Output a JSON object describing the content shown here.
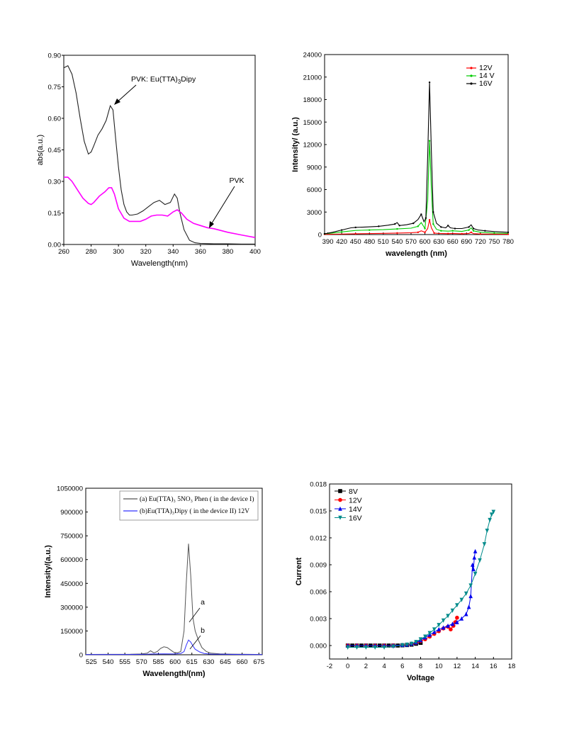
{
  "chart_data": [
    {
      "type": "line",
      "xlabel": "Wavelength(nm)",
      "ylabel": "abs(a.u.)",
      "xlim": [
        260,
        400
      ],
      "ylim": [
        0,
        0.9
      ],
      "xticks": [
        "260",
        "280",
        "300",
        "320",
        "340",
        "360",
        "380",
        "400"
      ],
      "yticks": [
        "0.00",
        "0.15",
        "0.30",
        "0.45",
        "0.60",
        "0.75",
        "0.90"
      ],
      "annotations": [
        {
          "text": "PVK: Eu(TTA)",
          "sub": "3",
          "tail": "Dipy"
        },
        {
          "text": "PVK"
        }
      ],
      "series": [
        {
          "color": "#222222",
          "x": [
            260,
            263,
            266,
            269,
            272,
            275,
            278,
            280,
            282,
            285,
            288,
            291,
            294,
            296,
            298,
            300,
            302,
            304,
            306,
            308,
            310,
            314,
            318,
            322,
            326,
            330,
            334,
            338,
            341,
            343,
            345,
            348,
            352,
            356,
            360,
            365,
            370,
            380,
            390,
            400
          ],
          "y": [
            0.84,
            0.85,
            0.81,
            0.72,
            0.6,
            0.49,
            0.43,
            0.44,
            0.47,
            0.52,
            0.55,
            0.59,
            0.66,
            0.64,
            0.5,
            0.37,
            0.26,
            0.19,
            0.155,
            0.14,
            0.14,
            0.145,
            0.16,
            0.18,
            0.2,
            0.21,
            0.19,
            0.2,
            0.24,
            0.22,
            0.15,
            0.07,
            0.02,
            0.008,
            0.005,
            0.004,
            0.003,
            0.003,
            0.002,
            0.002
          ]
        },
        {
          "color": "#ff00ff",
          "x": [
            260,
            263,
            266,
            270,
            274,
            278,
            280,
            282,
            286,
            290,
            293,
            295,
            297,
            300,
            304,
            308,
            312,
            316,
            320,
            324,
            328,
            332,
            336,
            340,
            343,
            346,
            350,
            355,
            360,
            365,
            370,
            380,
            390,
            400
          ],
          "y": [
            0.32,
            0.32,
            0.3,
            0.26,
            0.22,
            0.195,
            0.19,
            0.2,
            0.23,
            0.25,
            0.27,
            0.27,
            0.24,
            0.17,
            0.125,
            0.11,
            0.11,
            0.11,
            0.12,
            0.135,
            0.14,
            0.14,
            0.135,
            0.155,
            0.165,
            0.15,
            0.12,
            0.1,
            0.09,
            0.08,
            0.075,
            0.058,
            0.045,
            0.033
          ]
        }
      ]
    },
    {
      "type": "line",
      "xlabel": "wavelength (nm)",
      "ylabel": "Intensity/ (a.u.)",
      "xlim": [
        383,
        780
      ],
      "ylim": [
        0,
        24000
      ],
      "xticks": [
        "390",
        "420",
        "450",
        "480",
        "510",
        "540",
        "570",
        "600",
        "630",
        "660",
        "690",
        "720",
        "750",
        "780"
      ],
      "yticks": [
        "0",
        "3000",
        "6000",
        "9000",
        "12000",
        "15000",
        "18000",
        "21000",
        "24000"
      ],
      "legend_position": "top-right",
      "series": [
        {
          "name": "12V",
          "color": "#ff0000",
          "x": [
            383,
            400,
            450,
            500,
            540,
            570,
            585,
            592,
            600,
            606,
            610,
            614,
            620,
            630,
            650,
            660,
            680,
            695,
            700,
            705,
            720,
            750,
            780
          ],
          "y": [
            30,
            50,
            100,
            150,
            200,
            250,
            300,
            500,
            300,
            800,
            1950,
            900,
            200,
            150,
            120,
            150,
            100,
            150,
            300,
            120,
            80,
            60,
            40
          ]
        },
        {
          "name": "14 V",
          "color": "#00cc00",
          "x": [
            383,
            400,
            420,
            450,
            480,
            510,
            540,
            570,
            585,
            592,
            600,
            606,
            610,
            614,
            618,
            625,
            635,
            650,
            660,
            680,
            695,
            700,
            705,
            720,
            750,
            780
          ],
          "y": [
            100,
            200,
            350,
            550,
            600,
            650,
            750,
            850,
            1100,
            1600,
            800,
            4500,
            12500,
            6000,
            1400,
            700,
            500,
            450,
            500,
            420,
            600,
            900,
            500,
            300,
            200,
            150
          ]
        },
        {
          "name": "16V",
          "color": "#000000",
          "x": [
            383,
            400,
            420,
            440,
            450,
            470,
            500,
            520,
            535,
            540,
            545,
            560,
            575,
            585,
            592,
            598,
            602,
            606,
            610,
            614,
            618,
            625,
            635,
            645,
            650,
            655,
            665,
            680,
            695,
            700,
            705,
            715,
            730,
            750,
            780
          ],
          "y": [
            100,
            300,
            600,
            900,
            950,
            1000,
            1100,
            1250,
            1400,
            1600,
            1200,
            1300,
            1500,
            2000,
            2700,
            1700,
            2200,
            10500,
            20300,
            11000,
            3000,
            1500,
            1000,
            900,
            1200,
            900,
            800,
            800,
            1000,
            1300,
            800,
            600,
            500,
            400,
            300
          ]
        }
      ]
    },
    {
      "type": "line",
      "xlabel": "Wavelength/(nm)",
      "ylabel": "Intensity/(a.u.)",
      "xlim": [
        520,
        678
      ],
      "ylim": [
        0,
        1050000
      ],
      "xticks": [
        "525",
        "540",
        "555",
        "570",
        "585",
        "600",
        "615",
        "630",
        "645",
        "660",
        "675"
      ],
      "yticks": [
        "0",
        "150000",
        "300000",
        "450000",
        "600000",
        "750000",
        "900000",
        "1050000"
      ],
      "legend_position": "top-right",
      "annotations": [
        {
          "text": "a"
        },
        {
          "text": "b"
        }
      ],
      "series": [
        {
          "name": "(a) Eu(TTA)₃ 5NO₃ Phen ( in the device I)",
          "color": "#555555",
          "x": [
            520,
            540,
            560,
            570,
            575,
            578,
            581,
            584,
            587,
            590,
            593,
            596,
            599,
            602,
            605,
            608,
            610,
            612,
            614,
            616,
            618,
            621,
            624,
            628,
            632,
            640,
            650,
            660,
            678
          ],
          "y": [
            2000,
            2500,
            3000,
            5000,
            10000,
            25000,
            12000,
            20000,
            40000,
            50000,
            45000,
            30000,
            15000,
            12000,
            20000,
            150000,
            450000,
            700000,
            500000,
            230000,
            150000,
            90000,
            45000,
            20000,
            10000,
            6000,
            4000,
            3000,
            2000
          ]
        },
        {
          "name": "(b)Eu(TTA)₃Dipy ( in the device II) 12V",
          "color": "#3333ff",
          "x": [
            520,
            560,
            575,
            580,
            590,
            600,
            605,
            608,
            610,
            612,
            614,
            616,
            618,
            622,
            626,
            632,
            640,
            660,
            678
          ],
          "y": [
            1500,
            2000,
            3000,
            5000,
            6000,
            5000,
            8000,
            20000,
            60000,
            93000,
            80000,
            55000,
            35000,
            18000,
            8000,
            4000,
            3000,
            2000,
            1500
          ]
        }
      ]
    },
    {
      "type": "scatter",
      "xlabel": "Voltage",
      "ylabel": "Current",
      "xlim": [
        -2,
        18
      ],
      "ylim": [
        -0.0015,
        0.018
      ],
      "xticks": [
        "-2",
        "0",
        "2",
        "4",
        "6",
        "8",
        "10",
        "12",
        "14",
        "16",
        "18"
      ],
      "yticks": [
        "0.000",
        "0.003",
        "0.006",
        "0.009",
        "0.012",
        "0.015",
        "0.018"
      ],
      "legend_position": "top-left",
      "series": [
        {
          "name": "8V",
          "color": "#000000",
          "marker": "square",
          "x": [
            0,
            0.5,
            1,
            1.5,
            2,
            2.5,
            3,
            3.5,
            4,
            4.5,
            5,
            5.5,
            6,
            6.5,
            7,
            7.5,
            8
          ],
          "y": [
            0,
            0,
            0,
            0,
            0,
            0,
            0,
            0,
            0,
            0,
            0,
            0,
            2e-05,
            5e-05,
            0.0001,
            0.0002,
            0.0003
          ]
        },
        {
          "name": "12V",
          "color": "#ff0000",
          "marker": "circle",
          "x": [
            0,
            1,
            2,
            3,
            4,
            5,
            6,
            6.5,
            7,
            7.5,
            8,
            8.5,
            9,
            9.5,
            10,
            10.5,
            11,
            11.3,
            11.6,
            11.8,
            12
          ],
          "y": [
            0,
            0,
            0,
            0,
            0,
            2e-05,
            6e-05,
            0.0001,
            0.00018,
            0.0003,
            0.0005,
            0.0007,
            0.001,
            0.0013,
            0.0016,
            0.0019,
            0.0021,
            0.0018,
            0.0022,
            0.0026,
            0.0031
          ]
        },
        {
          "name": "14V",
          "color": "#0000ee",
          "marker": "triangle-up",
          "x": [
            0,
            1,
            2,
            3,
            4,
            5,
            6,
            6.5,
            7,
            7.5,
            8,
            8.5,
            9,
            9.5,
            10,
            10.5,
            11,
            11.5,
            12,
            12.5,
            13,
            13.3,
            13.5,
            13.7,
            13.8,
            13.9,
            14
          ],
          "y": [
            0,
            0,
            0,
            0,
            0,
            2e-05,
            6e-05,
            0.0001,
            0.0002,
            0.00035,
            0.0006,
            0.0009,
            0.0012,
            0.0015,
            0.0018,
            0.002,
            0.0022,
            0.0024,
            0.0026,
            0.003,
            0.0035,
            0.0043,
            0.0055,
            0.009,
            0.0085,
            0.0098,
            0.0105
          ]
        },
        {
          "name": "16V",
          "color": "#008b8b",
          "marker": "triangle-down",
          "x": [
            0,
            1,
            2,
            3,
            4,
            5,
            6,
            6.5,
            7,
            7.5,
            8,
            8.5,
            9,
            9.5,
            10,
            10.5,
            11,
            11.5,
            12,
            12.5,
            13,
            13.5,
            14,
            14.5,
            15,
            15.3,
            15.6,
            15.8,
            16
          ],
          "y": [
            -0.0002,
            -0.0002,
            -0.0002,
            -0.0002,
            -0.0002,
            -0.0001,
            5e-05,
            0.0001,
            0.0002,
            0.0004,
            0.0007,
            0.001,
            0.0014,
            0.0018,
            0.0023,
            0.0028,
            0.0033,
            0.0039,
            0.0045,
            0.0051,
            0.0058,
            0.0067,
            0.008,
            0.0095,
            0.0113,
            0.0128,
            0.014,
            0.0146,
            0.0149
          ]
        }
      ]
    }
  ]
}
